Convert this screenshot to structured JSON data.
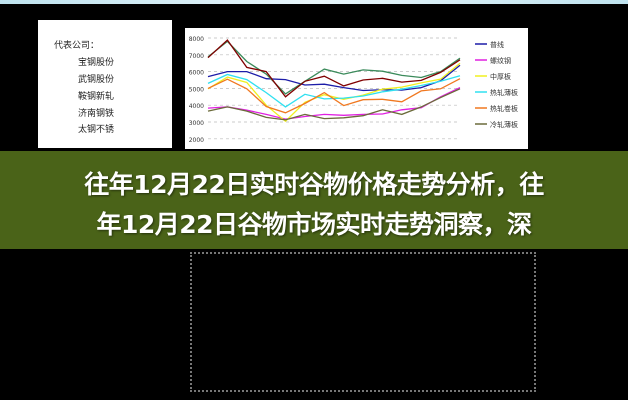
{
  "left_panel": {
    "title": "代表公司：",
    "companies": [
      "宝钢股份",
      "武钢股份",
      "鞍钢新轧",
      "济南钢铁",
      "太钢不锈"
    ]
  },
  "banner": {
    "line1": "往年12月22日实时谷物价格走势分析，往",
    "line2": "年12月22日谷物市场实时走势洞察，深"
  },
  "chart_data": {
    "type": "line",
    "title": "",
    "xlabel": "",
    "ylabel": "",
    "ylim": [
      2000,
      8000
    ],
    "yticks": [
      "8000",
      "7000",
      "6000",
      "5000",
      "4000",
      "3000",
      "2000"
    ],
    "grid": true,
    "legend_placement": "right",
    "series": [
      {
        "name": "普线",
        "color": "#1c1ca8",
        "values": [
          5750,
          6000,
          5950,
          5600,
          5500,
          5250,
          5250,
          5000,
          4900,
          4900,
          4950,
          5050,
          5400,
          6400
        ]
      },
      {
        "name": "螺纹钢",
        "color": "#e020e0",
        "values": [
          3800,
          3950,
          3700,
          3400,
          3200,
          3300,
          3500,
          3400,
          3400,
          3500,
          3700,
          3900,
          4500,
          5000
        ]
      },
      {
        "name": "中厚板",
        "color": "#f0f020",
        "values": [
          5000,
          5650,
          5400,
          4000,
          3000,
          4200,
          4600,
          4400,
          4600,
          4900,
          5100,
          5300,
          5600,
          6500
        ]
      },
      {
        "name": "热轧薄板",
        "color": "#30e0f0",
        "values": [
          5250,
          5850,
          5500,
          4800,
          3900,
          4600,
          4400,
          4400,
          4600,
          4800,
          4900,
          5200,
          5400,
          5800
        ]
      },
      {
        "name": "热轧卷板",
        "color": "#f07820",
        "values": [
          5000,
          5500,
          5000,
          3900,
          3600,
          4100,
          4700,
          4000,
          4300,
          4400,
          4200,
          4800,
          5000,
          5550
        ]
      },
      {
        "name": "冷轧薄板",
        "color": "#6b6b3a",
        "values": [
          3700,
          3900,
          3600,
          3300,
          3100,
          3500,
          3200,
          3200,
          3400,
          3700,
          3500,
          3900,
          4400,
          5000
        ]
      },
      {
        "color": "#3a8a5a",
        "values": [
          6850,
          7850,
          6600,
          5800,
          4700,
          5400,
          6200,
          5850,
          6050,
          6050,
          5750,
          5700,
          6000,
          6750
        ]
      },
      {
        "color": "#800000",
        "values": [
          6850,
          7850,
          6300,
          6000,
          4450,
          5450,
          5700,
          5200,
          5500,
          5550,
          5400,
          5450,
          6000,
          6700
        ]
      }
    ]
  }
}
